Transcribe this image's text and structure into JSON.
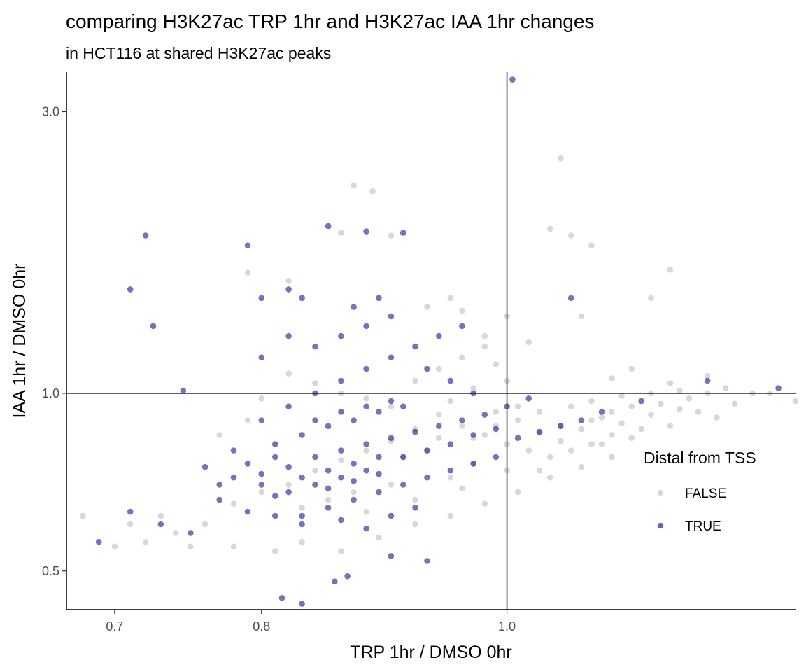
{
  "chart_data": {
    "type": "scatter",
    "title": "comparing H3K27ac TRP 1hr and H3K27ac IAA 1hr changes",
    "subtitle": "in HCT116 at shared H3K27ac peaks",
    "xlabel": "TRP 1hr / DMSO 0hr",
    "ylabel": "IAA 1hr / DMSO 0hr",
    "x_scale": "log",
    "y_scale": "log",
    "xlim": [
      0.67,
      1.3
    ],
    "ylim": [
      0.43,
      3.5
    ],
    "x_ticks": [
      0.7,
      0.8,
      1.0
    ],
    "x_tick_labels": [
      "0.7",
      "0.8",
      "1.0"
    ],
    "y_ticks": [
      0.5,
      1.0,
      3.0
    ],
    "y_tick_labels": [
      "0.5",
      "1.0",
      "3.0"
    ],
    "reference_lines": {
      "x": 1.0,
      "y": 1.0
    },
    "grid": false,
    "legend": {
      "title": "Distal from TSS",
      "position": "right",
      "entries": [
        {
          "label": "FALSE",
          "color": "#bebebe"
        },
        {
          "label": "TRUE",
          "color": "#00008b"
        }
      ]
    },
    "series": [
      {
        "name": "FALSE",
        "color": "#bebebe",
        "points": [
          [
            1.03,
            0.86
          ],
          [
            1.05,
            0.88
          ],
          [
            1.08,
            0.9
          ],
          [
            1.1,
            0.93
          ],
          [
            1.12,
            0.95
          ],
          [
            1.15,
            0.96
          ],
          [
            1.18,
            0.98
          ],
          [
            1.2,
            1.0
          ],
          [
            1.22,
            1.02
          ],
          [
            1.25,
            1.0
          ],
          [
            1.27,
            1.0
          ],
          [
            1.3,
            0.97
          ],
          [
            1.05,
            2.5
          ],
          [
            0.87,
            2.25
          ],
          [
            0.885,
            2.2
          ],
          [
            1.06,
            1.85
          ],
          [
            1.08,
            1.78
          ],
          [
            1.04,
            1.9
          ],
          [
            1.14,
            1.45
          ],
          [
            1.16,
            1.62
          ],
          [
            1.0,
            1.35
          ],
          [
            0.95,
            1.45
          ],
          [
            0.93,
            1.4
          ],
          [
            0.86,
            1.87
          ],
          [
            0.9,
            1.85
          ],
          [
            0.82,
            1.55
          ],
          [
            0.79,
            1.6
          ],
          [
            0.96,
            1.38
          ],
          [
            0.98,
            1.25
          ],
          [
            1.07,
            1.35
          ],
          [
            1.12,
            1.1
          ],
          [
            1.1,
            1.06
          ],
          [
            1.16,
            1.04
          ],
          [
            1.2,
            1.07
          ],
          [
            0.99,
            1.12
          ],
          [
            1.0,
            1.05
          ],
          [
            0.97,
            1.02
          ],
          [
            0.95,
            0.97
          ],
          [
            0.94,
            0.92
          ],
          [
            0.96,
            0.88
          ],
          [
            0.98,
            0.85
          ],
          [
            1.0,
            0.82
          ],
          [
            1.02,
            0.8
          ],
          [
            1.04,
            0.78
          ],
          [
            1.06,
            0.8
          ],
          [
            1.08,
            0.82
          ],
          [
            1.1,
            0.85
          ],
          [
            1.13,
            0.87
          ],
          [
            1.01,
            0.9
          ],
          [
            0.99,
            0.93
          ],
          [
            0.92,
            0.87
          ],
          [
            0.9,
            0.83
          ],
          [
            0.88,
            0.8
          ],
          [
            0.86,
            0.77
          ],
          [
            0.84,
            0.74
          ],
          [
            0.82,
            0.7
          ],
          [
            0.8,
            0.68
          ],
          [
            0.78,
            0.65
          ],
          [
            0.76,
            0.6
          ],
          [
            0.74,
            0.58
          ],
          [
            0.72,
            0.56
          ],
          [
            0.7,
            0.55
          ],
          [
            0.68,
            0.62
          ],
          [
            0.71,
            0.6
          ],
          [
            0.73,
            0.62
          ],
          [
            0.75,
            0.55
          ],
          [
            0.78,
            0.55
          ],
          [
            0.81,
            0.54
          ],
          [
            0.83,
            0.56
          ],
          [
            0.86,
            0.54
          ],
          [
            0.89,
            0.57
          ],
          [
            0.92,
            0.6
          ],
          [
            0.95,
            0.62
          ],
          [
            0.98,
            0.65
          ],
          [
            1.01,
            0.68
          ],
          [
            1.04,
            0.72
          ],
          [
            1.07,
            0.75
          ],
          [
            1.1,
            0.78
          ],
          [
            0.9,
            0.95
          ],
          [
            0.88,
            0.98
          ],
          [
            0.86,
            1.0
          ],
          [
            0.84,
            1.04
          ],
          [
            0.82,
            1.08
          ],
          [
            0.8,
            0.98
          ],
          [
            0.79,
            0.9
          ],
          [
            0.77,
            0.85
          ],
          [
            0.92,
            1.05
          ],
          [
            0.94,
            1.1
          ],
          [
            0.96,
            1.15
          ],
          [
            0.98,
            1.2
          ],
          [
            1.02,
            1.22
          ],
          [
            0.91,
            0.78
          ],
          [
            0.93,
            0.8
          ],
          [
            0.97,
            0.76
          ],
          [
            1.0,
            0.74
          ],
          [
            1.03,
            0.74
          ],
          [
            0.95,
            0.72
          ],
          [
            0.9,
            0.7
          ],
          [
            0.87,
            0.68
          ],
          [
            0.85,
            0.66
          ],
          [
            0.83,
            0.64
          ],
          [
            0.88,
            0.63
          ],
          [
            0.92,
            0.66
          ],
          [
            0.96,
            0.69
          ],
          [
            1.05,
            0.83
          ],
          [
            1.07,
            0.87
          ],
          [
            1.09,
            0.91
          ],
          [
            1.11,
            0.89
          ],
          [
            1.14,
            0.92
          ],
          [
            1.17,
            0.94
          ],
          [
            1.19,
            0.93
          ],
          [
            1.23,
            0.96
          ],
          [
            1.21,
            0.91
          ],
          [
            1.16,
            0.88
          ],
          [
            1.12,
            0.84
          ],
          [
            1.09,
            0.82
          ],
          [
            0.99,
            0.88
          ],
          [
            0.97,
            0.84
          ],
          [
            0.94,
            0.84
          ],
          [
            1.01,
            0.95
          ],
          [
            1.03,
            0.93
          ],
          [
            1.06,
            0.95
          ],
          [
            1.08,
            0.97
          ],
          [
            1.11,
            0.99
          ],
          [
            1.14,
            1.0
          ],
          [
            1.17,
            1.01
          ]
        ]
      },
      {
        "name": "TRUE",
        "color": "#00008b",
        "points": [
          [
            1.005,
            3.4
          ],
          [
            0.72,
            1.85
          ],
          [
            0.71,
            1.5
          ],
          [
            0.725,
            1.3
          ],
          [
            0.745,
            1.01
          ],
          [
            0.79,
            1.78
          ],
          [
            0.85,
            1.92
          ],
          [
            0.88,
            1.88
          ],
          [
            0.91,
            1.87
          ],
          [
            0.82,
            1.5
          ],
          [
            0.8,
            1.45
          ],
          [
            0.83,
            1.45
          ],
          [
            1.06,
            1.45
          ],
          [
            1.2,
            1.05
          ],
          [
            0.69,
            0.56
          ],
          [
            0.71,
            0.63
          ],
          [
            0.73,
            0.6
          ],
          [
            0.75,
            0.58
          ],
          [
            0.77,
            0.66
          ],
          [
            0.79,
            0.63
          ],
          [
            0.81,
            0.67
          ],
          [
            0.83,
            0.62
          ],
          [
            0.85,
            0.69
          ],
          [
            0.87,
            0.71
          ],
          [
            0.89,
            0.73
          ],
          [
            0.91,
            0.7
          ],
          [
            0.93,
            0.72
          ],
          [
            0.95,
            0.74
          ],
          [
            0.97,
            0.76
          ],
          [
            0.99,
            0.78
          ],
          [
            0.815,
            0.45
          ],
          [
            0.83,
            0.44
          ],
          [
            0.855,
            0.48
          ],
          [
            0.865,
            0.49
          ],
          [
            0.9,
            0.53
          ],
          [
            0.93,
            0.52
          ],
          [
            0.8,
            0.73
          ],
          [
            0.82,
            0.75
          ],
          [
            0.84,
            0.78
          ],
          [
            0.86,
            0.8
          ],
          [
            0.88,
            0.82
          ],
          [
            0.9,
            0.84
          ],
          [
            0.92,
            0.86
          ],
          [
            0.94,
            0.88
          ],
          [
            0.96,
            0.9
          ],
          [
            0.81,
            0.82
          ],
          [
            0.83,
            0.85
          ],
          [
            0.85,
            0.88
          ],
          [
            0.87,
            0.9
          ],
          [
            0.89,
            0.93
          ],
          [
            0.91,
            0.95
          ],
          [
            0.8,
            0.9
          ],
          [
            0.82,
            0.95
          ],
          [
            0.84,
            1.0
          ],
          [
            0.86,
            1.05
          ],
          [
            0.88,
            1.1
          ],
          [
            0.9,
            1.15
          ],
          [
            0.92,
            1.2
          ],
          [
            0.94,
            1.25
          ],
          [
            0.96,
            1.3
          ],
          [
            0.78,
            0.8
          ],
          [
            0.76,
            0.75
          ],
          [
            0.77,
            0.7
          ],
          [
            0.79,
            0.76
          ],
          [
            0.81,
            0.78
          ],
          [
            0.83,
            0.72
          ],
          [
            0.85,
            0.74
          ],
          [
            0.87,
            0.76
          ],
          [
            0.89,
            0.78
          ],
          [
            0.84,
            0.7
          ],
          [
            0.86,
            0.72
          ],
          [
            0.88,
            0.74
          ],
          [
            0.82,
            0.68
          ],
          [
            0.8,
            0.7
          ],
          [
            0.78,
            0.72
          ],
          [
            0.85,
            0.64
          ],
          [
            0.87,
            0.66
          ],
          [
            0.89,
            0.68
          ],
          [
            0.91,
            0.78
          ],
          [
            0.93,
            0.8
          ],
          [
            0.95,
            0.82
          ],
          [
            0.97,
            0.85
          ],
          [
            0.99,
            0.87
          ],
          [
            1.01,
            0.84
          ],
          [
            1.03,
            0.86
          ],
          [
            1.05,
            0.88
          ],
          [
            1.07,
            0.9
          ],
          [
            1.09,
            0.93
          ],
          [
            1.13,
            0.97
          ],
          [
            1.28,
            1.02
          ],
          [
            0.98,
            0.92
          ],
          [
            1.0,
            0.95
          ],
          [
            1.02,
            0.98
          ],
          [
            0.84,
            1.2
          ],
          [
            0.86,
            1.25
          ],
          [
            0.88,
            1.3
          ],
          [
            0.9,
            1.35
          ],
          [
            0.8,
            1.15
          ],
          [
            0.82,
            1.25
          ],
          [
            0.87,
            1.4
          ],
          [
            0.89,
            1.45
          ],
          [
            0.93,
            1.1
          ],
          [
            0.95,
            1.05
          ],
          [
            0.97,
            1.0
          ],
          [
            0.84,
            0.9
          ],
          [
            0.86,
            0.93
          ],
          [
            0.88,
            0.95
          ],
          [
            0.9,
            0.97
          ],
          [
            0.81,
            0.62
          ],
          [
            0.83,
            0.6
          ],
          [
            0.86,
            0.61
          ],
          [
            0.88,
            0.59
          ],
          [
            0.9,
            0.62
          ],
          [
            0.92,
            0.64
          ]
        ]
      }
    ]
  }
}
